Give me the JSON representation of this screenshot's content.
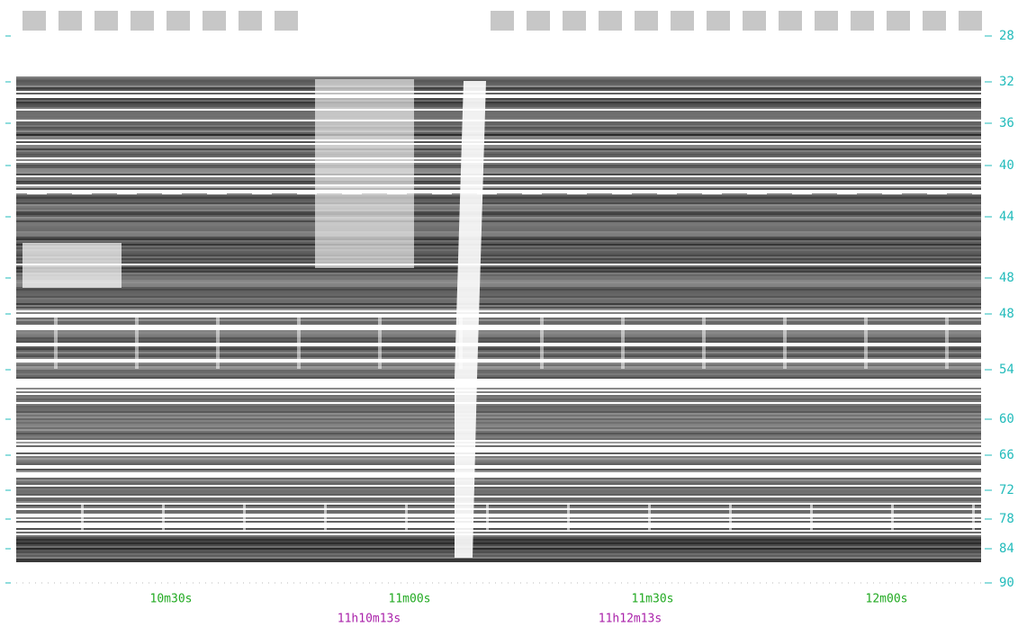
{
  "right_axis_labels": [
    28,
    32,
    36,
    40,
    44,
    48,
    48,
    54,
    60,
    66,
    72,
    78,
    84,
    90
  ],
  "time_labels": [
    "10m30s",
    "11m00s",
    "11m30s",
    "12m00s"
  ],
  "utc_labels": [
    "11h10m13s",
    "11h12m13s"
  ]
}
